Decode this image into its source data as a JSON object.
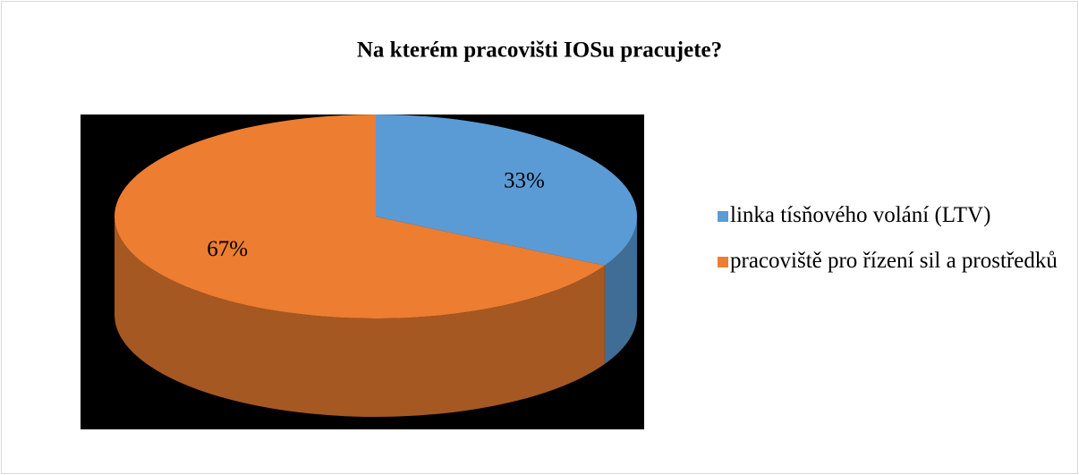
{
  "chart_data": {
    "type": "pie",
    "title": "Na kterém pracovišti IOSu pracujete?",
    "categories": [
      "linka tísňového volání (LTV)",
      "pracoviště pro řízení sil a prostředků"
    ],
    "values": [
      33,
      67
    ],
    "value_labels": [
      "33%",
      "67%"
    ],
    "colors": [
      "#5b9bd5",
      "#ed7d31"
    ],
    "legend": "right"
  }
}
